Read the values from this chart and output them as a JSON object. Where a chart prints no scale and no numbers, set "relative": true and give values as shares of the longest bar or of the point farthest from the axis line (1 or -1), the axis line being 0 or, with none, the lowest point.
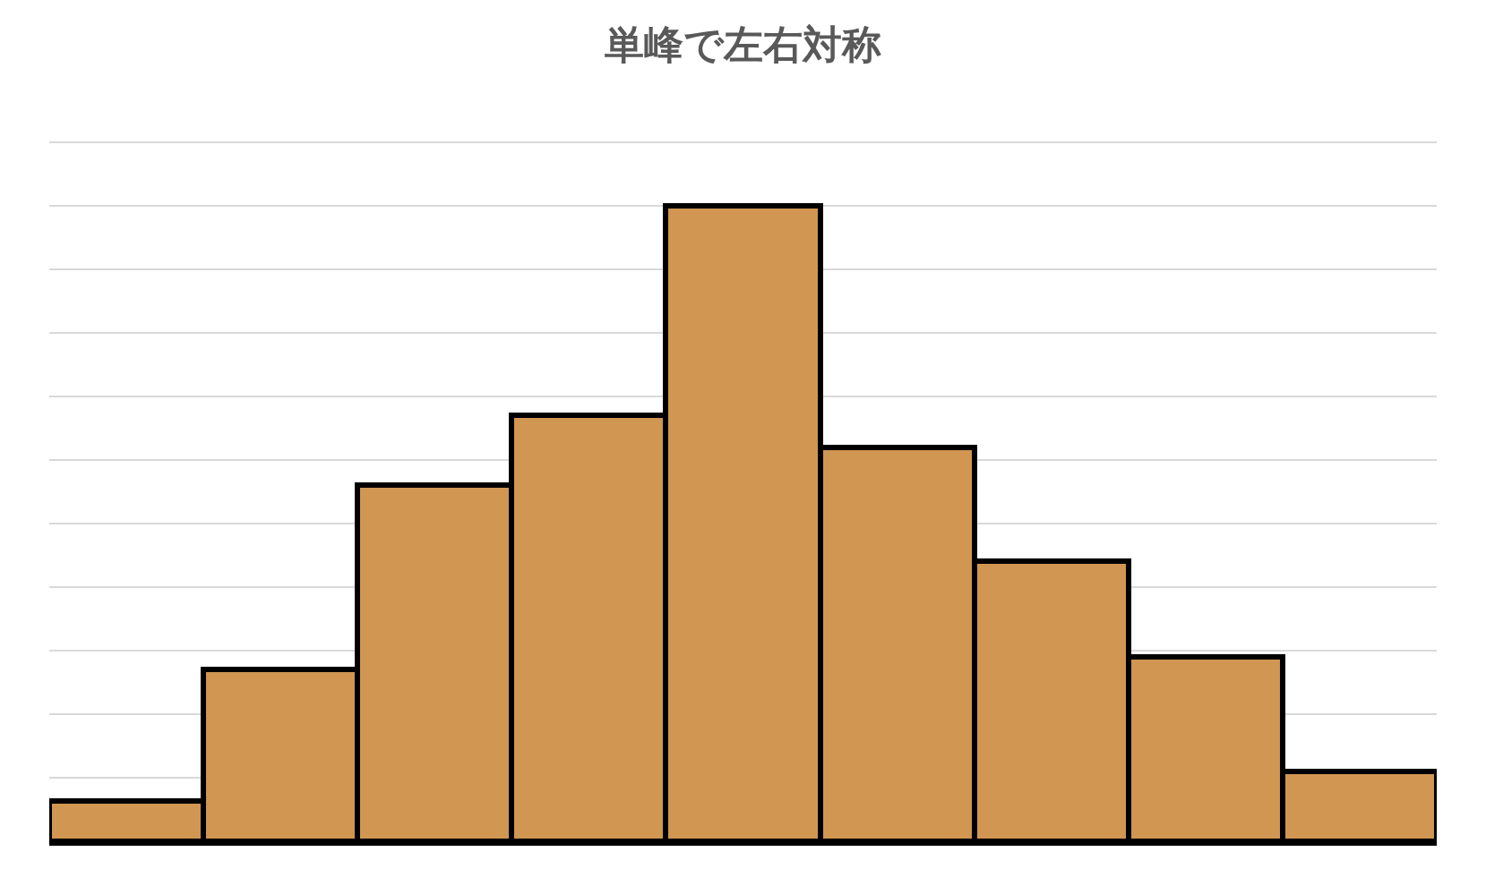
{
  "chart_data": {
    "type": "bar",
    "title": "単峰で左右対称",
    "relative": true,
    "grid": "y",
    "categories": [
      null,
      null,
      null,
      null,
      null,
      null,
      null,
      null,
      null
    ],
    "values": [
      0.064,
      0.27,
      0.56,
      0.67,
      1,
      0.62,
      0.44,
      0.29,
      0.11
    ],
    "color": "#d09652"
  }
}
